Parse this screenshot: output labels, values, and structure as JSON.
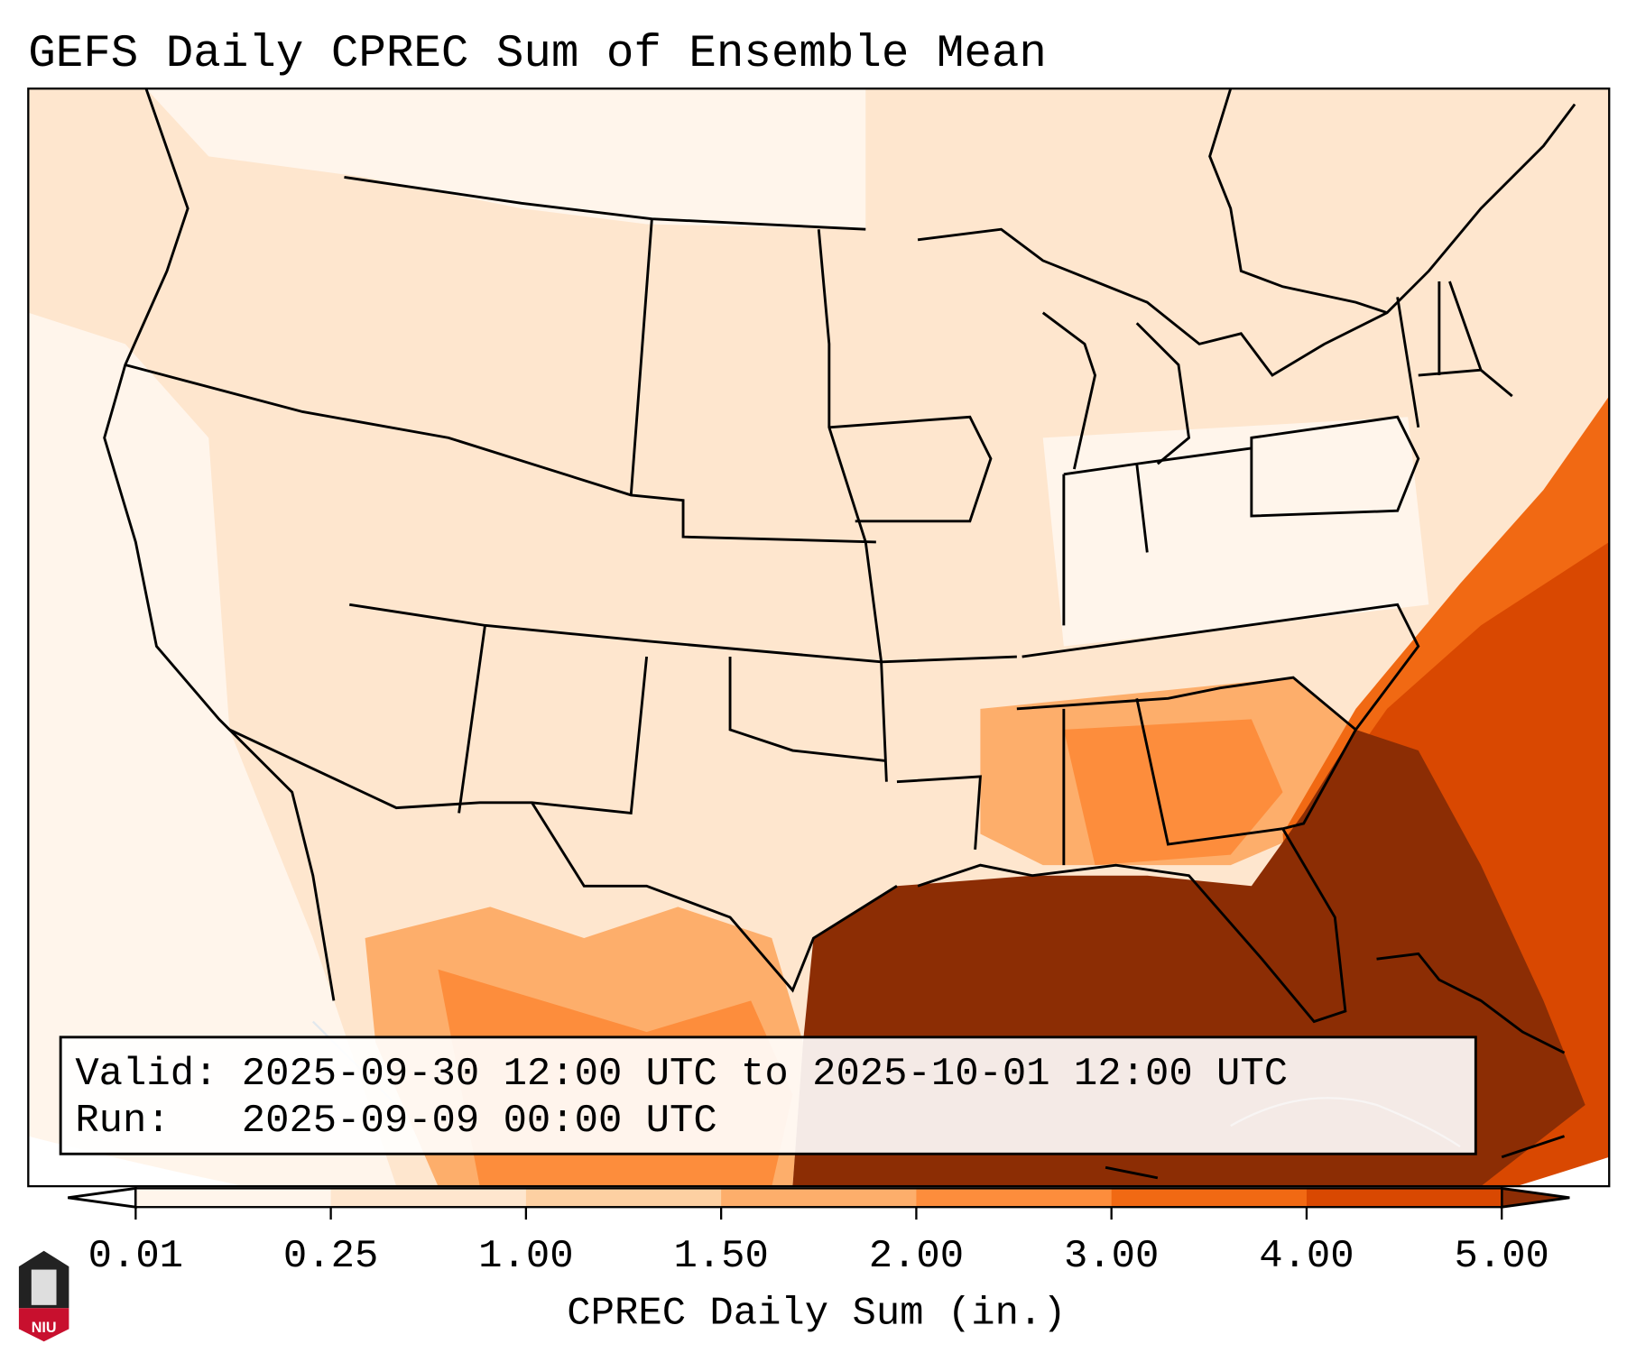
{
  "chart_data": {
    "type": "heatmap",
    "title": "GEFS Daily CPREC Sum of Ensemble Mean",
    "map_region": "Continental United States, southern Canada, northern Mexico, Gulf of Mexico, western Atlantic",
    "colorbar": {
      "label": "CPREC Daily Sum (in.)",
      "ticks": [
        "0.01",
        "0.25",
        "1.00",
        "1.50",
        "2.00",
        "3.00",
        "4.00",
        "5.00"
      ],
      "bounds": [
        0.01,
        0.25,
        1.0,
        1.5,
        2.0,
        3.0,
        4.0,
        5.0
      ],
      "colors": [
        "#fff5eb",
        "#fee6ce",
        "#fdd0a2",
        "#fdae6b",
        "#fd8d3c",
        "#f16913",
        "#d94801"
      ],
      "under_color": "#ffffff",
      "over_color": "#8c2d04",
      "extend": "both"
    },
    "features": [
      {
        "area": "Gulf of Mexico and Florida/Southeast coast offshore",
        "range": ">5.00"
      },
      {
        "area": "Western Atlantic off Southeast US",
        "range": "3.00-5.00"
      },
      {
        "area": "Gulf Coast states (MS, AL, GA, FL panhandle)",
        "range": "1.50-3.00"
      },
      {
        "area": "Northern Mexico (Sierra Madre)",
        "range": "1.00-3.00"
      },
      {
        "area": "Most of interior US and Canada",
        "range": "0.01-1.00"
      }
    ],
    "legend_placement": "bottom"
  },
  "info_box": {
    "valid_line": "Valid: 2025-09-30 12:00 UTC to 2025-10-01 12:00 UTC",
    "run_line": "Run:   2025-09-09 00:00 UTC"
  },
  "logo": {
    "text": "NIU"
  }
}
